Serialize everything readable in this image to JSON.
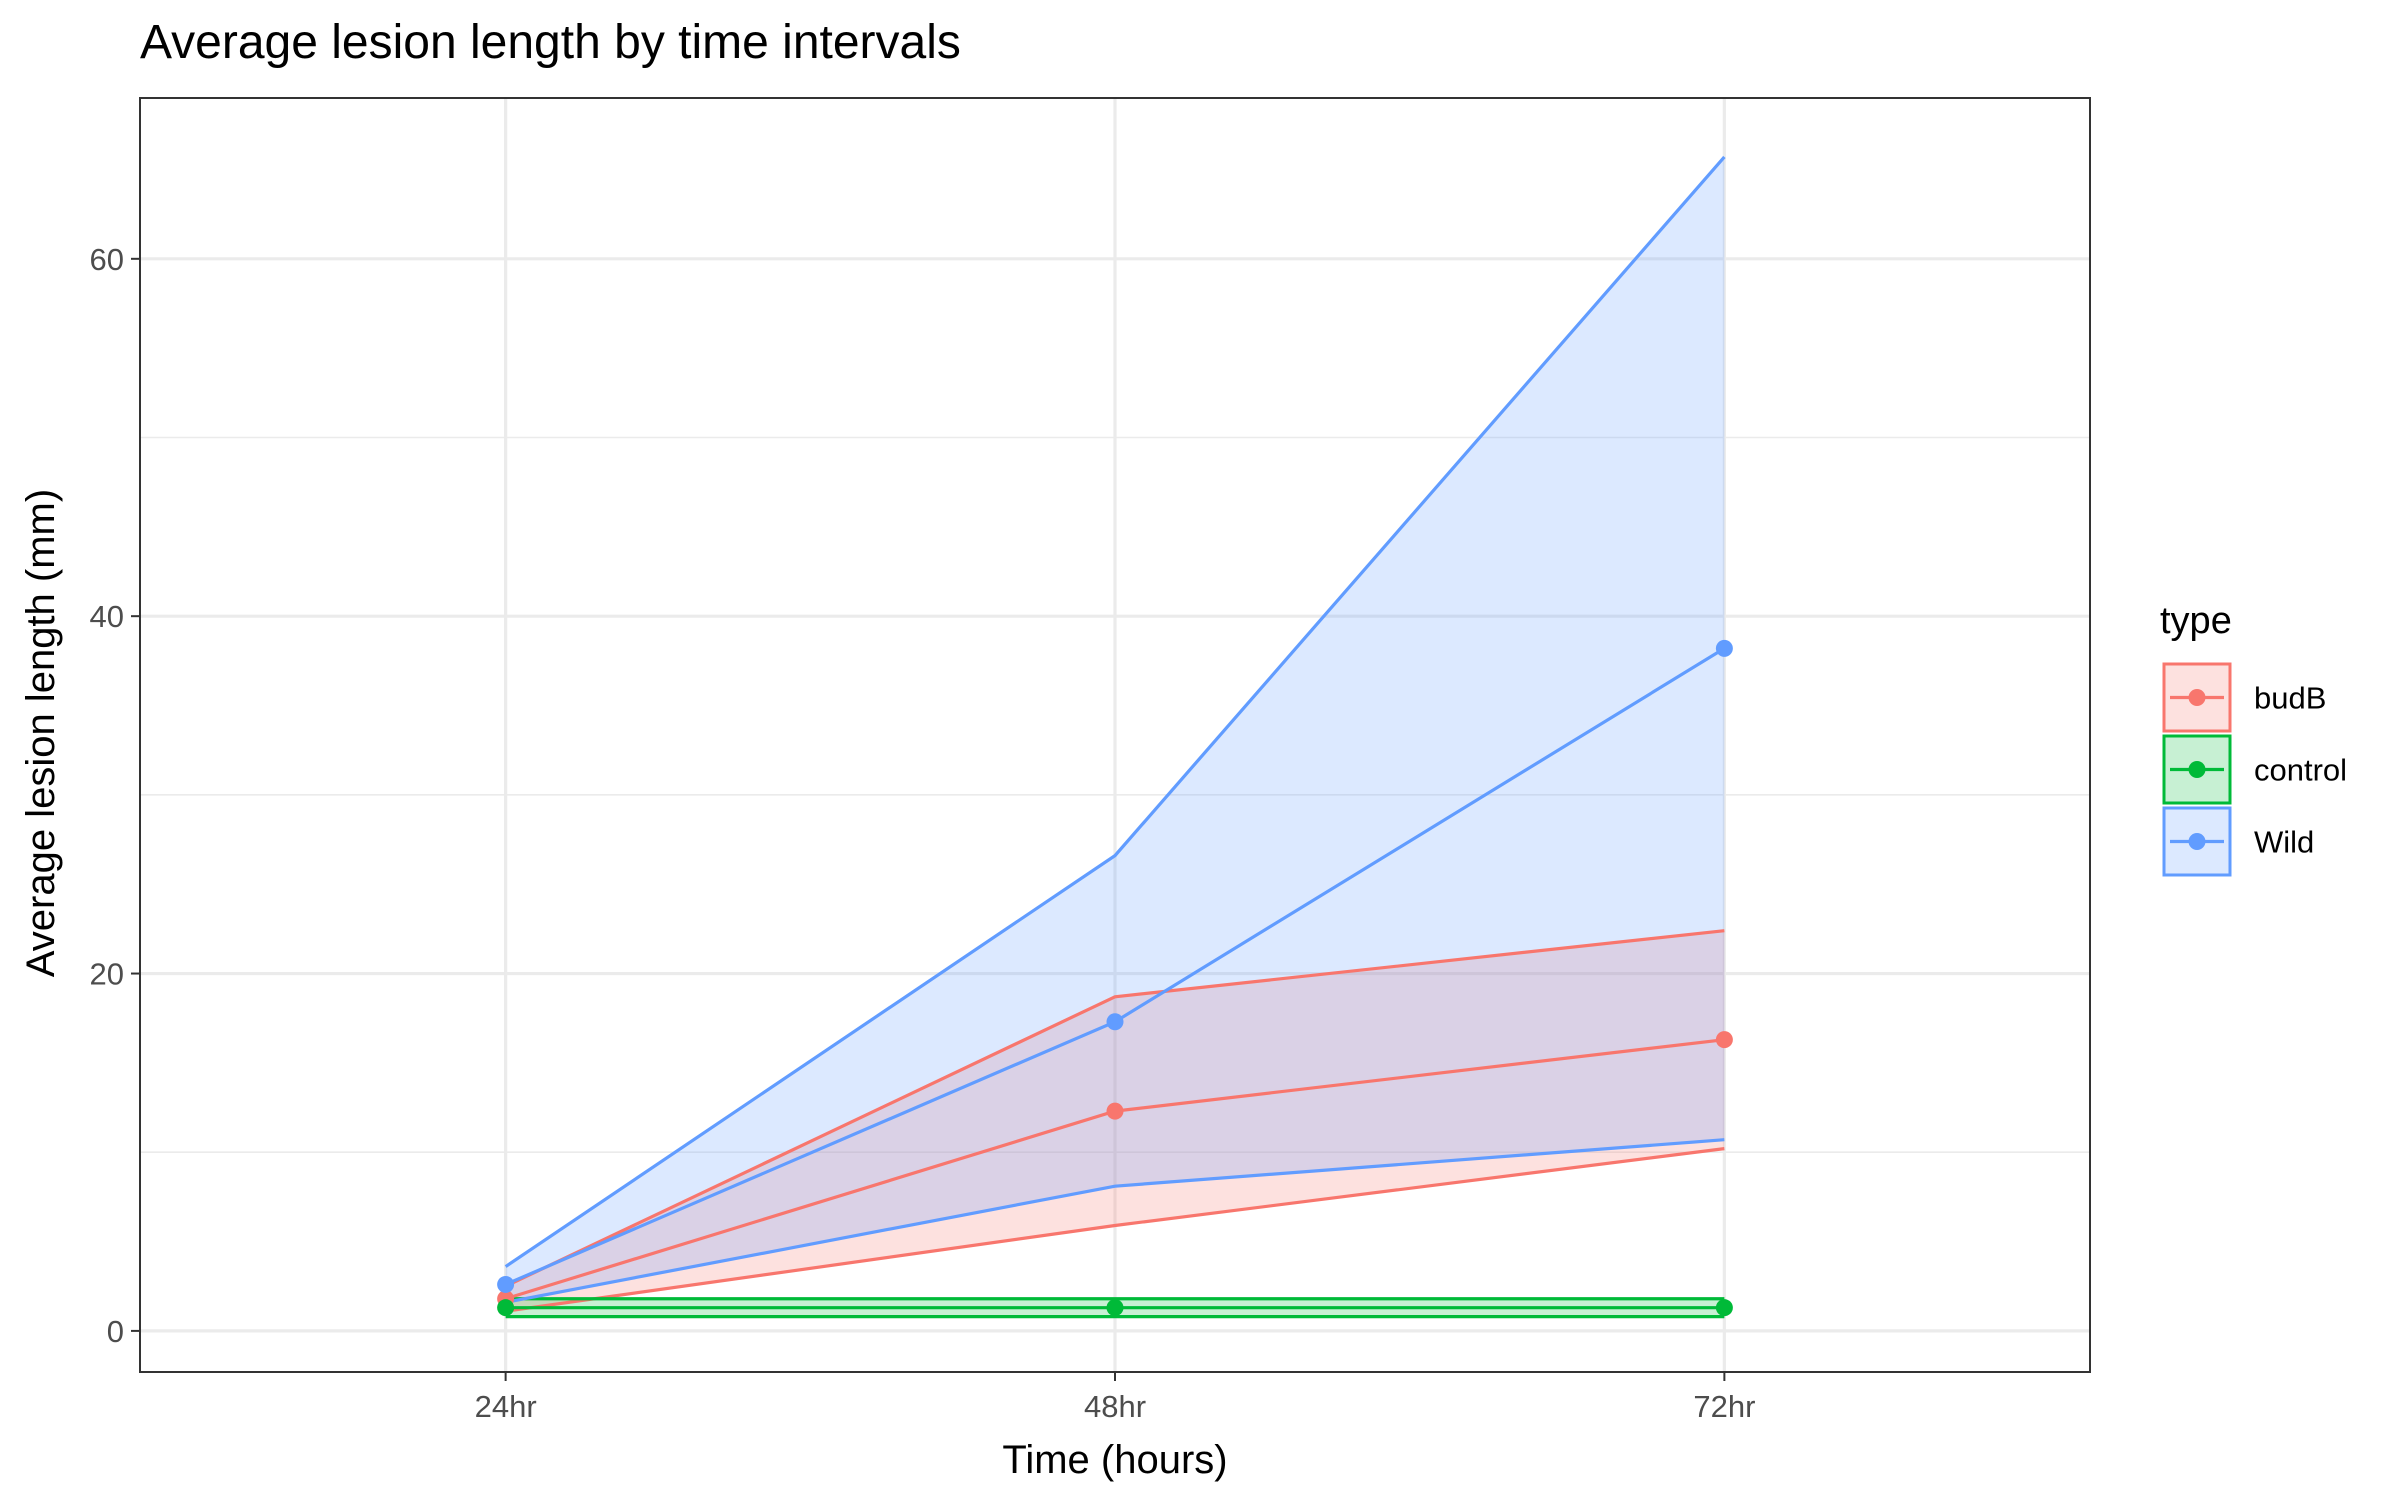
{
  "chart_data": {
    "type": "line",
    "title": "Average lesion length by time intervals",
    "xlabel": "Time (hours)",
    "ylabel": "Average lesion length (mm)",
    "categories": [
      "24hr",
      "48hr",
      "72hr"
    ],
    "ylim": [
      -2.3,
      69
    ],
    "y_ticks": [
      0,
      20,
      40,
      60
    ],
    "y_minor_ticks": [
      10,
      30,
      50
    ],
    "grid": true,
    "legend": {
      "title": "type",
      "position": "right"
    },
    "series": [
      {
        "name": "budB",
        "color": "#F8766D",
        "values": [
          1.8,
          12.3,
          16.3
        ],
        "lower": [
          1.1,
          5.9,
          10.2
        ],
        "upper": [
          2.5,
          18.7,
          22.4
        ]
      },
      {
        "name": "control",
        "color": "#00BA38",
        "values": [
          1.3,
          1.3,
          1.3
        ],
        "lower": [
          0.8,
          0.8,
          0.8
        ],
        "upper": [
          1.8,
          1.8,
          1.8
        ]
      },
      {
        "name": "Wild",
        "color": "#619CFF",
        "values": [
          2.6,
          17.3,
          38.2
        ],
        "lower": [
          1.6,
          8.1,
          10.7
        ],
        "upper": [
          3.6,
          26.6,
          65.7
        ]
      }
    ]
  }
}
